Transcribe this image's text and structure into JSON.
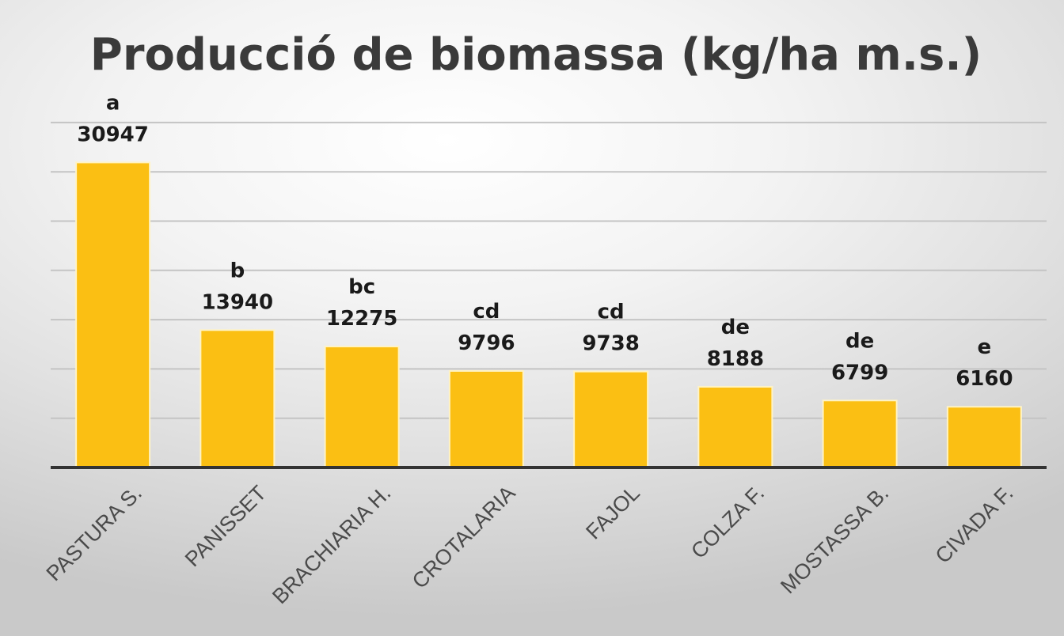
{
  "chart_data": {
    "type": "bar",
    "title": "Producció de biomassa (kg/ha m.s.)",
    "xlabel": "",
    "ylabel": "",
    "categories": [
      "PASTURA S.",
      "PANISSET",
      "BRACHIARIA H.",
      "CROTALARIA",
      "FAJOL",
      "COLZA F.",
      "MOSTASSA B.",
      "CIVADA F."
    ],
    "values": [
      30947,
      13940,
      12275,
      9796,
      9738,
      8188,
      6799,
      6160
    ],
    "significance_letters": [
      "a",
      "b",
      "bc",
      "cd",
      "cd",
      "de",
      "de",
      "e"
    ],
    "ylim": [
      0,
      35000
    ],
    "y_gridline_step": 5000,
    "y_tick_labels_visible": false,
    "grid": true,
    "legend": "none",
    "colors": {
      "bar_fill": "#FBBF13",
      "bar_border": "#FFF3C4",
      "gridline": "#C4C4C4",
      "axis_line": "#333333",
      "title": "#3A3A3A",
      "category_label": "#4A4A4A",
      "data_label": "#1A1A1A"
    }
  }
}
